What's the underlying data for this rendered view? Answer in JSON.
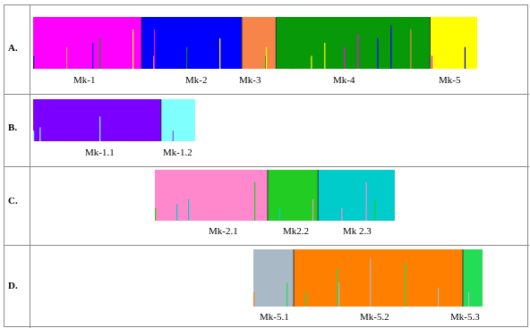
{
  "figure": {
    "panels": [
      {
        "id": "A",
        "row_label": "A.",
        "clusters": [
          "Mk-1",
          "Mk-2",
          "Mk-3",
          "Mk-4",
          "Mk-5"
        ]
      },
      {
        "id": "B",
        "row_label": "B.",
        "clusters": [
          "Mk-1.1",
          "Mk-1.2"
        ]
      },
      {
        "id": "C",
        "row_label": "C.",
        "clusters": [
          "Mk-2.1",
          "Mk2.2",
          "Mk 2.3"
        ]
      },
      {
        "id": "D",
        "row_label": "D.",
        "clusters": [
          "Mk-5.1",
          "Mk-5.2",
          "Mk-5.3"
        ]
      }
    ]
  },
  "chart_data": [
    {
      "type": "bar",
      "subtype": "stacked-membership",
      "panel": "A",
      "clusters": [
        {
          "name": "Mk-1",
          "color": "#ff00ff",
          "share": 0.244
        },
        {
          "name": "Mk-2",
          "color": "#0000ff",
          "share": 0.226
        },
        {
          "name": "Mk-3",
          "color": "#f7854a",
          "share": 0.077
        },
        {
          "name": "Mk-4",
          "color": "#079907",
          "share": 0.347
        },
        {
          "name": "Mk-5",
          "color": "#ffff00",
          "share": 0.106
        }
      ],
      "admixture_colors": [
        "#00aa00",
        "#ff8800",
        "#ffff00",
        "#0000ff",
        "#ff00ff",
        "#aa44aa"
      ]
    },
    {
      "type": "bar",
      "subtype": "stacked-membership",
      "panel": "B",
      "clusters": [
        {
          "name": "Mk-1.1",
          "color": "#7b00ff",
          "share": 0.789
        },
        {
          "name": "Mk-1.2",
          "color": "#80ffff",
          "share": 0.211
        }
      ]
    },
    {
      "type": "bar",
      "subtype": "stacked-membership",
      "panel": "C",
      "clusters": [
        {
          "name": "Mk-2.1",
          "color": "#ff88cc",
          "share": 0.47
        },
        {
          "name": "Mk2.2",
          "color": "#22cc22",
          "share": 0.21
        },
        {
          "name": "Mk 2.3",
          "color": "#00cccc",
          "share": 0.32
        }
      ]
    },
    {
      "type": "bar",
      "subtype": "stacked-membership",
      "panel": "D",
      "clusters": [
        {
          "name": "Mk-5.1",
          "color": "#a9bac6",
          "share": 0.176
        },
        {
          "name": "Mk-5.2",
          "color": "#ff8000",
          "share": 0.738
        },
        {
          "name": "Mk-5.3",
          "color": "#22dd55",
          "share": 0.086
        }
      ]
    }
  ]
}
